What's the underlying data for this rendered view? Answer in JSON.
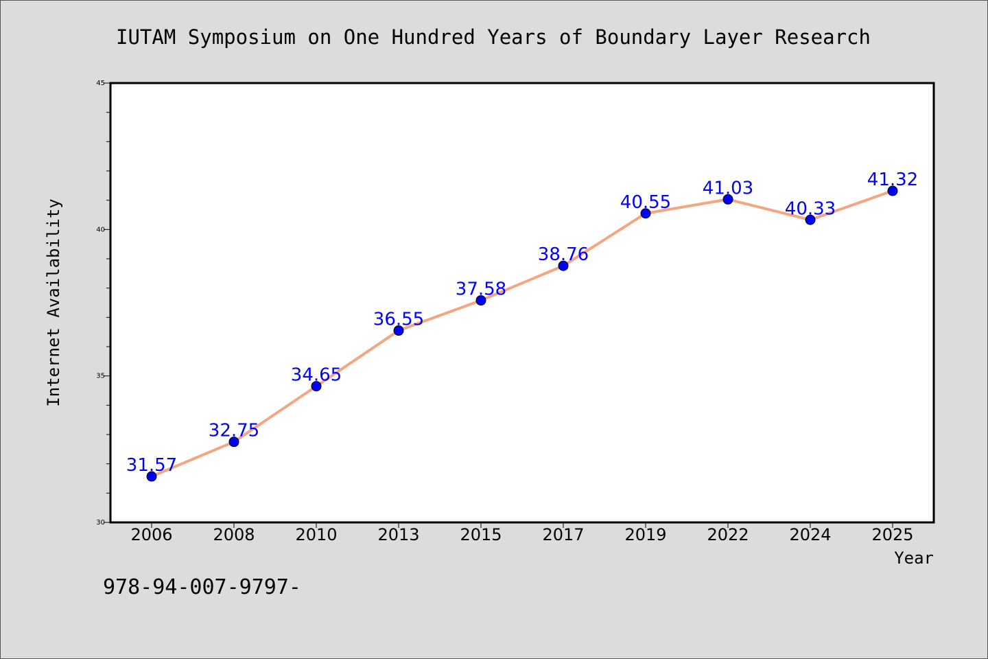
{
  "chart_data": {
    "type": "line",
    "title": "IUTAM Symposium on One Hundred Years of Boundary Layer Research",
    "xlabel": "Year",
    "ylabel": "Internet Availability",
    "categories": [
      "2006",
      "2008",
      "2010",
      "2013",
      "2015",
      "2017",
      "2019",
      "2022",
      "2024",
      "2025"
    ],
    "series": [
      {
        "values": [
          31.57,
          32.75,
          34.65,
          36.55,
          37.58,
          38.76,
          40.55,
          41.03,
          40.33,
          41.32
        ],
        "labels": [
          "31.57",
          "32.75",
          "34.65",
          "36.55",
          "37.58",
          "38.76",
          "40.55",
          "41.03",
          "40.33",
          "41.32"
        ],
        "line_color": "#f4a582",
        "marker_color": "#0000ff",
        "label_color": "#0000ff"
      }
    ],
    "ylim": [
      30,
      45
    ],
    "yticks": [
      30,
      35,
      40,
      45
    ],
    "ytick_labels": [
      "30",
      "35",
      "40",
      "45"
    ],
    "grid": false,
    "legend": "none"
  },
  "footer_text": "978-94-007-9797-"
}
